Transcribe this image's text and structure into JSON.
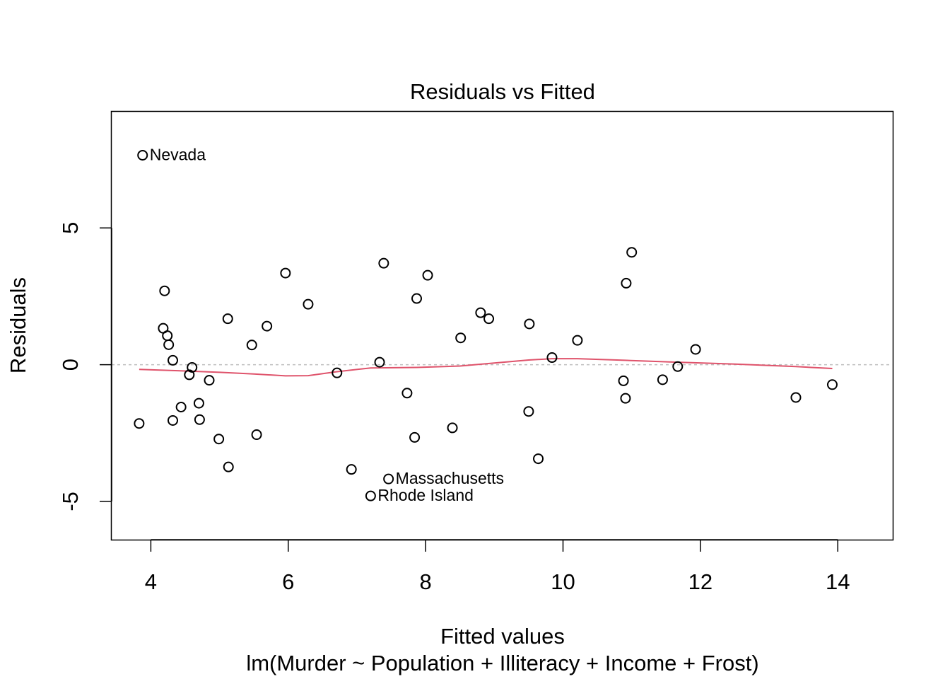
{
  "chart_data": {
    "type": "scatter",
    "title": "Residuals vs Fitted",
    "xlabel": "Fitted values",
    "ylabel": "Residuals",
    "subtitle": "lm(Murder ~ Population + Illiteracy + Income + Frost)",
    "xlim": [
      3.43,
      14.8
    ],
    "ylim": [
      -6.4,
      9.25
    ],
    "x_ticks": [
      4,
      6,
      8,
      10,
      12,
      14
    ],
    "x_tick_labels": [
      "4",
      "6",
      "8",
      "10",
      "12",
      "14"
    ],
    "y_ticks": [
      -5,
      0,
      5
    ],
    "y_tick_labels": [
      "-5",
      "0",
      "5"
    ],
    "zero_line": true,
    "colors": {
      "smooth": "#DF536B",
      "zero_line": "#BEBEBE",
      "points": "#000000"
    },
    "points": [
      {
        "x": 3.88,
        "y": 7.66,
        "label": "Nevada"
      },
      {
        "x": 3.83,
        "y": -2.15
      },
      {
        "x": 4.18,
        "y": 1.33
      },
      {
        "x": 4.2,
        "y": 2.7
      },
      {
        "x": 4.24,
        "y": 1.06
      },
      {
        "x": 4.26,
        "y": 0.73
      },
      {
        "x": 4.32,
        "y": 0.16
      },
      {
        "x": 4.32,
        "y": -2.04
      },
      {
        "x": 4.44,
        "y": -1.55
      },
      {
        "x": 4.56,
        "y": -0.37
      },
      {
        "x": 4.6,
        "y": -0.1
      },
      {
        "x": 4.7,
        "y": -1.41
      },
      {
        "x": 4.71,
        "y": -2.01
      },
      {
        "x": 4.85,
        "y": -0.57
      },
      {
        "x": 4.99,
        "y": -2.72
      },
      {
        "x": 5.12,
        "y": 1.68
      },
      {
        "x": 5.13,
        "y": -3.74
      },
      {
        "x": 5.47,
        "y": 0.72
      },
      {
        "x": 5.54,
        "y": -2.56
      },
      {
        "x": 5.69,
        "y": 1.41
      },
      {
        "x": 5.96,
        "y": 3.35
      },
      {
        "x": 6.29,
        "y": 2.21
      },
      {
        "x": 6.71,
        "y": -0.3
      },
      {
        "x": 6.92,
        "y": -3.83
      },
      {
        "x": 7.2,
        "y": -4.8,
        "label": "Rhode Island"
      },
      {
        "x": 7.33,
        "y": 0.09
      },
      {
        "x": 7.39,
        "y": 3.71
      },
      {
        "x": 7.46,
        "y": -4.18,
        "label": "Massachusetts"
      },
      {
        "x": 7.73,
        "y": -1.04
      },
      {
        "x": 7.84,
        "y": -2.66
      },
      {
        "x": 7.87,
        "y": 2.42
      },
      {
        "x": 8.03,
        "y": 3.27
      },
      {
        "x": 8.39,
        "y": -2.31
      },
      {
        "x": 8.51,
        "y": 0.98
      },
      {
        "x": 8.8,
        "y": 1.9
      },
      {
        "x": 8.92,
        "y": 1.68
      },
      {
        "x": 9.5,
        "y": -1.71
      },
      {
        "x": 9.51,
        "y": 1.49
      },
      {
        "x": 9.64,
        "y": -3.44
      },
      {
        "x": 9.84,
        "y": 0.26
      },
      {
        "x": 10.21,
        "y": 0.89
      },
      {
        "x": 10.88,
        "y": -0.59
      },
      {
        "x": 10.91,
        "y": -1.23
      },
      {
        "x": 10.92,
        "y": 2.98
      },
      {
        "x": 11.0,
        "y": 4.11
      },
      {
        "x": 11.45,
        "y": -0.55
      },
      {
        "x": 11.67,
        "y": -0.07
      },
      {
        "x": 11.93,
        "y": 0.56
      },
      {
        "x": 13.39,
        "y": -1.2
      },
      {
        "x": 13.92,
        "y": -0.73
      }
    ],
    "smooth": [
      {
        "x": 3.83,
        "y": -0.17
      },
      {
        "x": 4.5,
        "y": -0.23
      },
      {
        "x": 5.0,
        "y": -0.28
      },
      {
        "x": 5.5,
        "y": -0.34
      },
      {
        "x": 5.96,
        "y": -0.41
      },
      {
        "x": 6.29,
        "y": -0.4
      },
      {
        "x": 6.7,
        "y": -0.26
      },
      {
        "x": 7.2,
        "y": -0.12
      },
      {
        "x": 7.87,
        "y": -0.1
      },
      {
        "x": 8.5,
        "y": -0.05
      },
      {
        "x": 9.0,
        "y": 0.06
      },
      {
        "x": 9.5,
        "y": 0.17
      },
      {
        "x": 9.84,
        "y": 0.22
      },
      {
        "x": 10.21,
        "y": 0.22
      },
      {
        "x": 10.9,
        "y": 0.16
      },
      {
        "x": 11.67,
        "y": 0.09
      },
      {
        "x": 12.5,
        "y": 0.02
      },
      {
        "x": 13.39,
        "y": -0.07
      },
      {
        "x": 13.92,
        "y": -0.14
      }
    ]
  }
}
